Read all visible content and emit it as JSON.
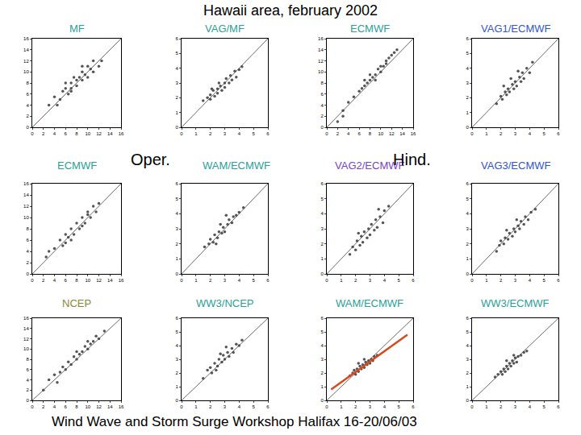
{
  "title": "Hawaii area, february 2002",
  "footer": "Wind Wave and Storm Surge Workshop Halifax 16-20/06/03",
  "annotations": [
    {
      "text": "Oper."
    },
    {
      "text": "Hind."
    }
  ],
  "chart_data": [
    {
      "type": "scatter",
      "title": "MF",
      "grid": false,
      "xlim": [
        0,
        16
      ],
      "ylim": [
        0,
        16
      ],
      "xticks": [
        0,
        2,
        4,
        6,
        8,
        10,
        12,
        14,
        16
      ],
      "yticks": [
        0,
        2,
        4,
        6,
        8,
        10,
        12,
        14,
        16
      ],
      "series": [
        {
          "type": "scatter",
          "color": "#555555",
          "marker": "circle",
          "x": [
            3,
            4,
            5,
            5.5,
            6,
            6.5,
            7,
            7,
            7.5,
            8,
            8,
            8.5,
            9,
            9,
            9.5,
            10,
            10,
            10.5,
            11,
            11,
            12,
            12.5,
            6,
            7,
            9,
            4.5
          ],
          "values": [
            4,
            5.5,
            5,
            6.5,
            7,
            6,
            8,
            7,
            9,
            8.5,
            7.5,
            9,
            10,
            8.5,
            9.5,
            11,
            9,
            10.5,
            10,
            12,
            11,
            12,
            8,
            6.5,
            11,
            4
          ]
        },
        {
          "type": "line",
          "line_style": "solid",
          "color": "#444444",
          "x": [
            0,
            16
          ],
          "values": [
            0,
            16
          ]
        }
      ]
    },
    {
      "type": "scatter",
      "title": "VAG/MF",
      "grid": false,
      "xlim": [
        0,
        6
      ],
      "ylim": [
        0,
        6
      ],
      "xticks": [
        0,
        1,
        2,
        3,
        4,
        5,
        6
      ],
      "yticks": [
        0,
        1,
        2,
        3,
        4,
        5,
        6
      ],
      "series": [
        {
          "type": "scatter",
          "color": "#555555",
          "marker": "circle",
          "x": [
            1.5,
            1.8,
            2,
            2,
            2.2,
            2.3,
            2.5,
            2.5,
            2.7,
            2.8,
            3,
            3,
            3.1,
            3.3,
            3.4,
            3.5,
            3.7,
            3.8,
            4,
            4.2,
            2.6,
            2.1
          ],
          "values": [
            1.8,
            2,
            2.2,
            1.9,
            2.5,
            2.1,
            2.6,
            2.3,
            2.8,
            2.5,
            3,
            2.7,
            3.3,
            3,
            3.5,
            3.2,
            3.8,
            3.4,
            3.9,
            4.1,
            3,
            2.6
          ]
        },
        {
          "type": "line",
          "line_style": "solid",
          "color": "#444444",
          "x": [
            0,
            6
          ],
          "values": [
            0,
            6
          ]
        }
      ]
    },
    {
      "type": "scatter",
      "title": "ECMWF",
      "grid": false,
      "xlim": [
        0,
        16
      ],
      "ylim": [
        0,
        16
      ],
      "xticks": [
        0,
        2,
        4,
        6,
        8,
        10,
        12,
        14,
        16
      ],
      "yticks": [
        0,
        2,
        4,
        6,
        8,
        10,
        12,
        14,
        16
      ],
      "series": [
        {
          "type": "scatter",
          "color": "#555555",
          "marker": "circle",
          "x": [
            2,
            3,
            4,
            5,
            6,
            6.5,
            7,
            7.5,
            8,
            8.5,
            9,
            9.5,
            10,
            10.5,
            11,
            11.5,
            12,
            12.5,
            13,
            8,
            9,
            10,
            7,
            11,
            3
          ],
          "values": [
            1,
            3,
            4.5,
            5.5,
            6.5,
            7,
            7.5,
            8,
            8.5,
            9,
            9.5,
            10.5,
            11,
            11,
            12,
            12.5,
            13,
            13.5,
            14,
            9.5,
            8.5,
            10,
            8.5,
            11.5,
            2
          ]
        },
        {
          "type": "line",
          "line_style": "solid",
          "color": "#444444",
          "x": [
            0,
            16
          ],
          "values": [
            0,
            16
          ]
        }
      ]
    },
    {
      "type": "scatter",
      "title": "VAG1/ECMWF",
      "grid": false,
      "xlim": [
        0,
        6
      ],
      "ylim": [
        0,
        6
      ],
      "xticks": [
        0,
        1,
        2,
        3,
        4,
        5,
        6
      ],
      "yticks": [
        0,
        1,
        2,
        3,
        4,
        5,
        6
      ],
      "series": [
        {
          "type": "scatter",
          "color": "#555555",
          "marker": "circle",
          "x": [
            1.7,
            2,
            2.1,
            2.3,
            2.4,
            2.5,
            2.6,
            2.8,
            2.9,
            3,
            3.1,
            3.3,
            3.4,
            3.5,
            3.6,
            3.8,
            4,
            4.2,
            2.7,
            3.2,
            2.2
          ],
          "values": [
            1.6,
            2.1,
            1.9,
            2.4,
            2.2,
            2.6,
            2.4,
            2.9,
            2.6,
            3.1,
            2.8,
            3.4,
            3.1,
            3.7,
            3.3,
            4,
            3.7,
            4.4,
            3.3,
            3.8,
            2.8
          ]
        },
        {
          "type": "line",
          "line_style": "solid",
          "color": "#444444",
          "x": [
            0,
            6
          ],
          "values": [
            0,
            6
          ]
        }
      ]
    },
    {
      "type": "scatter",
      "title": "ECMWF",
      "grid": false,
      "xlim": [
        0,
        16
      ],
      "ylim": [
        0,
        16
      ],
      "xticks": [
        0,
        2,
        4,
        6,
        8,
        10,
        12,
        14,
        16
      ],
      "yticks": [
        0,
        2,
        4,
        6,
        8,
        10,
        12,
        14,
        16
      ],
      "series": [
        {
          "type": "scatter",
          "color": "#555555",
          "marker": "circle",
          "x": [
            2.5,
            3,
            4,
            5,
            5.5,
            6,
            6.5,
            7,
            7.5,
            8,
            8.5,
            9,
            9.5,
            10,
            10.5,
            11,
            11.5,
            12,
            7,
            9,
            6,
            10
          ],
          "values": [
            3,
            4,
            4.5,
            6,
            5,
            7,
            6.5,
            8,
            7,
            9,
            8,
            10,
            9,
            11,
            10,
            12,
            11,
            12.5,
            6,
            8.5,
            5.5,
            10.5
          ]
        },
        {
          "type": "line",
          "line_style": "solid",
          "color": "#444444",
          "x": [
            0,
            16
          ],
          "values": [
            0,
            16
          ]
        }
      ]
    },
    {
      "type": "scatter",
      "title": "WAM/ECMWF",
      "grid": false,
      "xlim": [
        0,
        6
      ],
      "ylim": [
        0,
        6
      ],
      "xticks": [
        0,
        1,
        2,
        3,
        4,
        5,
        6
      ],
      "yticks": [
        0,
        1,
        2,
        3,
        4,
        5,
        6
      ],
      "series": [
        {
          "type": "scatter",
          "color": "#555555",
          "marker": "circle",
          "x": [
            1.6,
            1.9,
            2,
            2.2,
            2.3,
            2.5,
            2.6,
            2.8,
            2.9,
            3,
            3.2,
            3.3,
            3.5,
            3.6,
            3.8,
            4,
            4.3,
            2.4,
            3.1,
            2.7
          ],
          "values": [
            1.8,
            2,
            2.3,
            2.1,
            2.6,
            2.4,
            2.8,
            2.7,
            3.1,
            2.8,
            3.3,
            3.6,
            3.4,
            3.8,
            3.9,
            4.1,
            4.4,
            2,
            3.9,
            3.3
          ]
        },
        {
          "type": "line",
          "line_style": "solid",
          "color": "#444444",
          "x": [
            0,
            6
          ],
          "values": [
            0,
            6
          ]
        }
      ]
    },
    {
      "type": "scatter",
      "title": "VAG2/ECMWF",
      "grid": false,
      "xlim": [
        0,
        6
      ],
      "ylim": [
        0,
        6
      ],
      "xticks": [
        0,
        1,
        2,
        3,
        4,
        5,
        6
      ],
      "yticks": [
        0,
        1,
        2,
        3,
        4,
        5,
        6
      ],
      "series": [
        {
          "type": "scatter",
          "color": "#555555",
          "marker": "circle",
          "x": [
            1.6,
            1.8,
            2,
            2.1,
            2.3,
            2.4,
            2.5,
            2.6,
            2.8,
            2.9,
            3,
            3.1,
            3.3,
            3.4,
            3.5,
            3.7,
            3.9,
            4,
            4.3,
            2.2,
            3.6
          ],
          "values": [
            1.3,
            1.8,
            1.6,
            2.2,
            1.9,
            2.5,
            2.1,
            2.8,
            2.4,
            3,
            2.6,
            3.3,
            2.9,
            3.6,
            3.1,
            3.8,
            3.4,
            4.2,
            4.5,
            2.7,
            4.3
          ]
        },
        {
          "type": "line",
          "line_style": "solid",
          "color": "#444444",
          "x": [
            0,
            6
          ],
          "values": [
            0,
            6
          ]
        }
      ]
    },
    {
      "type": "scatter",
      "title": "VAG3/ECMWF",
      "grid": false,
      "xlim": [
        0,
        6
      ],
      "ylim": [
        0,
        6
      ],
      "xticks": [
        0,
        1,
        2,
        3,
        4,
        5,
        6
      ],
      "yticks": [
        0,
        1,
        2,
        3,
        4,
        5,
        6
      ],
      "series": [
        {
          "type": "scatter",
          "color": "#555555",
          "marker": "circle",
          "x": [
            1.7,
            1.9,
            2,
            2.2,
            2.3,
            2.5,
            2.6,
            2.8,
            2.9,
            3,
            3.2,
            3.3,
            3.4,
            3.6,
            3.7,
            3.9,
            4.1,
            4.4,
            2.4,
            3.1
          ],
          "values": [
            1.5,
            1.9,
            2.2,
            2,
            2.4,
            2.3,
            2.7,
            2.5,
            3,
            2.8,
            3.2,
            3,
            3.5,
            3.3,
            3.8,
            3.6,
            4.1,
            4.3,
            2.9,
            3.6
          ]
        },
        {
          "type": "line",
          "line_style": "solid",
          "color": "#444444",
          "x": [
            0,
            6
          ],
          "values": [
            0,
            6
          ]
        }
      ]
    },
    {
      "type": "scatter",
      "title": "NCEP",
      "grid": false,
      "xlim": [
        0,
        16
      ],
      "ylim": [
        0,
        16
      ],
      "xticks": [
        0,
        2,
        4,
        6,
        8,
        10,
        12,
        14,
        16
      ],
      "yticks": [
        0,
        2,
        4,
        6,
        8,
        10,
        12,
        14,
        16
      ],
      "series": [
        {
          "type": "scatter",
          "color": "#555555",
          "marker": "circle",
          "x": [
            2,
            3,
            4,
            5,
            5.5,
            6,
            6.5,
            7,
            7.5,
            8,
            8.5,
            9,
            9.5,
            10,
            10.5,
            11,
            11.5,
            12,
            13,
            4.5,
            8,
            10
          ],
          "values": [
            2,
            4,
            5,
            5.5,
            6.5,
            6,
            7.5,
            7,
            8.5,
            8,
            9,
            9.5,
            10.5,
            10,
            11,
            11.5,
            12.5,
            12,
            13.5,
            3.5,
            9.5,
            11.5
          ]
        },
        {
          "type": "line",
          "line_style": "solid",
          "color": "#444444",
          "x": [
            0,
            16
          ],
          "values": [
            0,
            16
          ]
        }
      ]
    },
    {
      "type": "scatter",
      "title": "WW3/NCEP",
      "grid": false,
      "xlim": [
        0,
        6
      ],
      "ylim": [
        0,
        6
      ],
      "xticks": [
        0,
        1,
        2,
        3,
        4,
        5,
        6
      ],
      "yticks": [
        0,
        1,
        2,
        3,
        4,
        5,
        6
      ],
      "series": [
        {
          "type": "scatter",
          "color": "#555555",
          "marker": "circle",
          "x": [
            1.5,
            1.8,
            2,
            2.1,
            2.3,
            2.5,
            2.6,
            2.8,
            2.9,
            3,
            3.2,
            3.3,
            3.5,
            3.6,
            3.8,
            4,
            4.2,
            2.4,
            3.1,
            2.7
          ],
          "values": [
            1.6,
            2.2,
            2.4,
            2,
            2.7,
            2.5,
            3,
            2.8,
            3.3,
            3,
            3.5,
            3.2,
            3.8,
            3.5,
            4.1,
            4,
            4.4,
            2.2,
            3.9,
            3.4
          ]
        },
        {
          "type": "line",
          "line_style": "solid",
          "color": "#444444",
          "x": [
            0,
            6
          ],
          "values": [
            0,
            6
          ]
        }
      ]
    },
    {
      "type": "scatter",
      "title": "WAM/ECMWF",
      "grid": false,
      "xlim": [
        0,
        6
      ],
      "ylim": [
        0,
        6
      ],
      "xticks": [
        0,
        1,
        2,
        3,
        4,
        5,
        6
      ],
      "yticks": [
        0,
        1,
        2,
        3,
        4,
        5,
        6
      ],
      "series": [
        {
          "type": "scatter",
          "color": "#555555",
          "marker": "circle",
          "x": [
            1.6,
            1.8,
            1.9,
            2,
            2.1,
            2.2,
            2.3,
            2.4,
            2.5,
            2.6,
            2.7,
            2.8,
            2.9,
            3,
            3.1,
            3.2,
            3.3,
            3.5,
            2.2,
            2.6
          ],
          "values": [
            1.8,
            2,
            2.2,
            1.9,
            2.3,
            2.1,
            2.5,
            2.3,
            2.6,
            2.4,
            2.8,
            2.6,
            2.9,
            2.7,
            3,
            2.9,
            3.2,
            3.3,
            2.7,
            3
          ]
        },
        {
          "type": "line",
          "line_style": "solid",
          "color": "#444444",
          "x": [
            0,
            6
          ],
          "values": [
            0,
            6
          ]
        },
        {
          "type": "line",
          "line_style": "solid",
          "color": "#d9481c",
          "x": [
            0.3,
            5.6
          ],
          "values": [
            0.8,
            4.8
          ]
        }
      ]
    },
    {
      "type": "scatter",
      "title": "WW3/ECMWF",
      "grid": false,
      "xlim": [
        0,
        6
      ],
      "ylim": [
        0,
        6
      ],
      "xticks": [
        0,
        1,
        2,
        3,
        4,
        5,
        6
      ],
      "yticks": [
        0,
        1,
        2,
        3,
        4,
        5,
        6
      ],
      "series": [
        {
          "type": "scatter",
          "color": "#555555",
          "marker": "circle",
          "x": [
            1.6,
            1.8,
            2,
            2.1,
            2.2,
            2.3,
            2.4,
            2.5,
            2.6,
            2.7,
            2.8,
            2.9,
            3,
            3.1,
            3.2,
            3.4,
            3.6,
            3.8,
            2.4,
            2.9
          ],
          "values": [
            1.7,
            1.9,
            2.1,
            1.9,
            2.3,
            2.1,
            2.5,
            2.3,
            2.7,
            2.5,
            2.9,
            2.7,
            3.1,
            2.8,
            3.2,
            3.3,
            3.5,
            3.6,
            2.9,
            3.3
          ]
        },
        {
          "type": "line",
          "line_style": "solid",
          "color": "#444444",
          "x": [
            0,
            6
          ],
          "values": [
            0,
            6
          ]
        }
      ]
    }
  ]
}
